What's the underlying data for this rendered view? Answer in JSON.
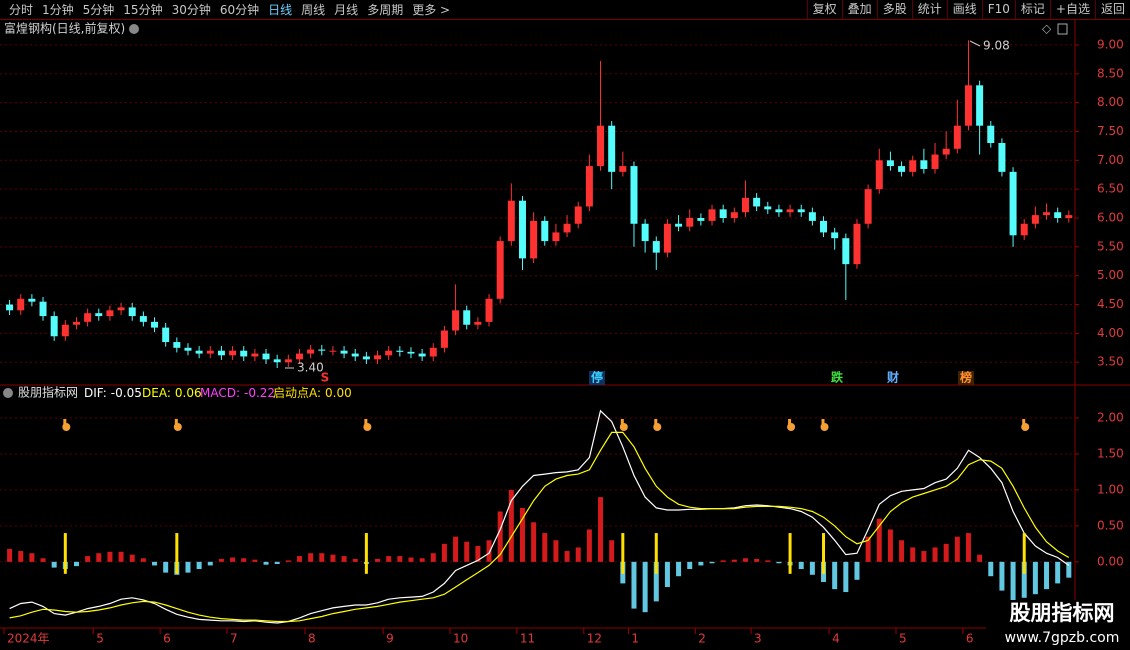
{
  "toolbar": {
    "left": [
      "分时",
      "1分钟",
      "5分钟",
      "15分钟",
      "30分钟",
      "60分钟",
      "日线",
      "周线",
      "月线",
      "多周期",
      "更多 >"
    ],
    "active": "日线",
    "right": [
      "复权",
      "叠加",
      "多股",
      "统计",
      "画线",
      "F10",
      "标记",
      "+自选",
      "返回"
    ]
  },
  "chart_data": [
    {
      "type": "candlestick",
      "title": "富煌钢构(日线,前复权)",
      "categories": [
        "2024年",
        null,
        null,
        null,
        null,
        null,
        null,
        null,
        "5",
        null,
        null,
        null,
        null,
        null,
        "6",
        null,
        null,
        null,
        null,
        null,
        "7",
        null,
        null,
        null,
        null,
        null,
        null,
        "8",
        null,
        null,
        null,
        null,
        null,
        null,
        "9",
        null,
        null,
        null,
        null,
        null,
        "10",
        null,
        null,
        null,
        null,
        null,
        "11",
        null,
        null,
        null,
        null,
        null,
        "12",
        null,
        null,
        null,
        "1",
        null,
        null,
        null,
        null,
        null,
        "2",
        null,
        null,
        null,
        null,
        "3",
        null,
        null,
        null,
        null,
        null,
        null,
        "4",
        null,
        null,
        null,
        null,
        null,
        "5",
        null,
        null,
        null,
        null,
        null,
        "6",
        null,
        null,
        null,
        null,
        null,
        null,
        null,
        null,
        null
      ],
      "open": [
        4.5,
        4.4,
        4.6,
        4.55,
        4.3,
        3.95,
        4.15,
        4.2,
        4.35,
        4.3,
        4.4,
        4.45,
        4.3,
        4.2,
        4.1,
        3.85,
        3.75,
        3.7,
        3.65,
        3.7,
        3.62,
        3.7,
        3.6,
        3.65,
        3.55,
        3.5,
        3.55,
        3.65,
        3.72,
        3.7,
        3.7,
        3.65,
        3.6,
        3.55,
        3.62,
        3.7,
        3.68,
        3.65,
        3.6,
        3.75,
        4.05,
        4.4,
        4.15,
        4.2,
        4.6,
        5.6,
        6.3,
        5.3,
        5.95,
        5.6,
        5.75,
        5.9,
        6.2,
        6.9,
        7.6,
        6.8,
        6.9,
        5.9,
        5.6,
        5.4,
        5.9,
        5.85,
        6.0,
        5.95,
        6.15,
        6.0,
        6.1,
        6.35,
        6.2,
        6.15,
        6.1,
        6.15,
        6.1,
        5.95,
        5.75,
        5.65,
        5.2,
        5.9,
        6.5,
        7.0,
        6.9,
        6.8,
        7.0,
        6.85,
        7.1,
        7.2,
        7.6,
        8.3,
        7.6,
        7.3,
        6.8,
        5.7,
        5.9,
        6.05,
        6.1,
        6.0
      ],
      "high": [
        4.58,
        4.68,
        4.68,
        4.63,
        4.38,
        4.23,
        4.28,
        4.43,
        4.43,
        4.48,
        4.53,
        4.53,
        4.38,
        4.28,
        4.18,
        3.93,
        3.83,
        3.78,
        3.78,
        3.78,
        3.78,
        3.78,
        3.73,
        3.73,
        3.63,
        3.63,
        3.73,
        3.8,
        3.8,
        3.78,
        3.78,
        3.73,
        3.68,
        3.7,
        3.78,
        3.78,
        3.76,
        3.73,
        3.83,
        4.13,
        4.85,
        4.48,
        4.28,
        4.68,
        5.68,
        6.6,
        6.38,
        6.1,
        6.03,
        5.9,
        6.05,
        6.28,
        7.1,
        8.72,
        7.68,
        7.15,
        6.98,
        5.98,
        5.68,
        5.98,
        6.05,
        6.15,
        6.08,
        6.23,
        6.23,
        6.18,
        6.65,
        6.43,
        6.28,
        6.23,
        6.23,
        6.23,
        6.18,
        6.03,
        5.83,
        5.73,
        5.98,
        6.58,
        7.2,
        7.15,
        6.98,
        7.08,
        7.2,
        7.3,
        7.5,
        8.05,
        9.08,
        8.38,
        7.68,
        7.38,
        6.88,
        5.98,
        6.2,
        6.25,
        6.18,
        6.13
      ],
      "low": [
        4.32,
        4.32,
        4.47,
        4.22,
        3.87,
        3.87,
        4.07,
        4.12,
        4.22,
        4.22,
        4.32,
        4.22,
        4.12,
        4.02,
        3.77,
        3.67,
        3.62,
        3.57,
        3.57,
        3.54,
        3.54,
        3.52,
        3.52,
        3.47,
        3.4,
        3.42,
        3.47,
        3.57,
        3.62,
        3.62,
        3.57,
        3.52,
        3.47,
        3.47,
        3.54,
        3.6,
        3.57,
        3.52,
        3.52,
        3.67,
        3.97,
        4.07,
        4.07,
        4.12,
        4.52,
        5.52,
        5.1,
        5.22,
        5.52,
        5.52,
        5.67,
        5.82,
        6.12,
        6.82,
        6.5,
        6.72,
        5.5,
        5.4,
        5.1,
        5.32,
        5.77,
        5.77,
        5.87,
        5.87,
        5.92,
        5.92,
        6.02,
        6.12,
        6.07,
        6.02,
        6.02,
        6.02,
        5.87,
        5.67,
        5.45,
        4.58,
        5.12,
        5.82,
        6.42,
        6.82,
        6.72,
        6.72,
        6.77,
        6.77,
        7.02,
        7.12,
        7.52,
        7.1,
        7.22,
        6.72,
        5.5,
        5.62,
        5.82,
        5.97,
        5.92,
        5.92
      ],
      "close": [
        4.4,
        4.6,
        4.55,
        4.3,
        3.95,
        4.15,
        4.2,
        4.35,
        4.3,
        4.4,
        4.45,
        4.3,
        4.2,
        4.1,
        3.85,
        3.75,
        3.7,
        3.65,
        3.7,
        3.62,
        3.7,
        3.6,
        3.65,
        3.55,
        3.5,
        3.55,
        3.65,
        3.72,
        3.7,
        3.7,
        3.65,
        3.6,
        3.55,
        3.62,
        3.7,
        3.68,
        3.65,
        3.6,
        3.75,
        4.05,
        4.4,
        4.15,
        4.2,
        4.6,
        5.6,
        6.3,
        5.3,
        5.95,
        5.6,
        5.75,
        5.9,
        6.2,
        6.9,
        7.6,
        6.8,
        6.9,
        5.9,
        5.6,
        5.4,
        5.9,
        5.85,
        6.0,
        5.95,
        6.15,
        6.0,
        6.1,
        6.35,
        6.2,
        6.15,
        6.1,
        6.15,
        6.1,
        5.95,
        5.75,
        5.65,
        5.2,
        5.9,
        6.5,
        7.0,
        6.9,
        6.8,
        7.0,
        6.85,
        7.1,
        7.2,
        7.6,
        8.3,
        7.6,
        7.3,
        6.8,
        5.7,
        5.9,
        6.05,
        6.1,
        6.0,
        6.05
      ],
      "up_color": "#ff3232",
      "down_color": "#54fcfc",
      "ylim": [
        3.14,
        9.12
      ],
      "yticks": [
        {
          "value": 3.5,
          "label": "3.50"
        },
        {
          "value": 4,
          "label": "4.00"
        },
        {
          "value": 4.5,
          "label": "4.50"
        },
        {
          "value": 5,
          "label": "5.00"
        },
        {
          "value": 5.5,
          "label": "5.50"
        },
        {
          "value": 6,
          "label": "6.00"
        },
        {
          "value": 6.5,
          "label": "6.50"
        },
        {
          "value": 7,
          "label": "7.00"
        },
        {
          "value": 7.5,
          "label": "7.50"
        },
        {
          "value": 8,
          "label": "8.00"
        },
        {
          "value": 8.5,
          "label": "8.50"
        },
        {
          "value": 9,
          "label": "9.00"
        }
      ],
      "grid": true,
      "annotations": [
        "9.08",
        "3.40"
      ],
      "events": [
        "S",
        "停",
        "跌",
        "财",
        "榜"
      ]
    },
    {
      "type": "macd",
      "title": "股朋指标网",
      "series": [
        {
          "name": "DIF:",
          "last_label": "-0.05",
          "color": "#ffffff",
          "values": [
            -0.65,
            -0.58,
            -0.56,
            -0.62,
            -0.72,
            -0.74,
            -0.7,
            -0.65,
            -0.62,
            -0.58,
            -0.52,
            -0.5,
            -0.53,
            -0.58,
            -0.66,
            -0.73,
            -0.77,
            -0.8,
            -0.81,
            -0.82,
            -0.82,
            -0.83,
            -0.82,
            -0.84,
            -0.85,
            -0.83,
            -0.78,
            -0.72,
            -0.68,
            -0.64,
            -0.62,
            -0.6,
            -0.6,
            -0.57,
            -0.52,
            -0.5,
            -0.49,
            -0.48,
            -0.42,
            -0.3,
            -0.12,
            -0.05,
            0.02,
            0.12,
            0.45,
            0.85,
            1.05,
            1.2,
            1.22,
            1.24,
            1.25,
            1.28,
            1.45,
            2.1,
            1.95,
            1.6,
            1.2,
            0.9,
            0.75,
            0.72,
            0.72,
            0.73,
            0.73,
            0.74,
            0.74,
            0.75,
            0.78,
            0.79,
            0.78,
            0.76,
            0.74,
            0.7,
            0.62,
            0.48,
            0.3,
            0.1,
            0.12,
            0.45,
            0.8,
            0.92,
            0.98,
            1.0,
            1.02,
            1.1,
            1.15,
            1.3,
            1.55,
            1.45,
            1.3,
            1.1,
            0.7,
            0.4,
            0.22,
            0.12,
            0.06,
            -0.05
          ]
        },
        {
          "name": "DEA:",
          "last_label": "0.06",
          "color": "#ffff00",
          "values": [
            -0.78,
            -0.75,
            -0.7,
            -0.66,
            -0.67,
            -0.69,
            -0.7,
            -0.69,
            -0.67,
            -0.64,
            -0.6,
            -0.57,
            -0.55,
            -0.56,
            -0.6,
            -0.65,
            -0.7,
            -0.74,
            -0.77,
            -0.79,
            -0.8,
            -0.81,
            -0.81,
            -0.82,
            -0.83,
            -0.83,
            -0.82,
            -0.79,
            -0.76,
            -0.72,
            -0.69,
            -0.66,
            -0.64,
            -0.62,
            -0.59,
            -0.56,
            -0.54,
            -0.52,
            -0.5,
            -0.45,
            -0.35,
            -0.25,
            -0.15,
            -0.05,
            0.1,
            0.35,
            0.6,
            0.85,
            1.05,
            1.15,
            1.2,
            1.22,
            1.28,
            1.55,
            1.8,
            1.8,
            1.6,
            1.3,
            1.05,
            0.9,
            0.8,
            0.76,
            0.74,
            0.74,
            0.74,
            0.74,
            0.76,
            0.77,
            0.77,
            0.77,
            0.76,
            0.74,
            0.7,
            0.62,
            0.5,
            0.35,
            0.25,
            0.3,
            0.5,
            0.7,
            0.82,
            0.9,
            0.95,
            1.0,
            1.05,
            1.15,
            1.35,
            1.42,
            1.4,
            1.3,
            1.05,
            0.75,
            0.48,
            0.28,
            0.15,
            0.06
          ]
        },
        {
          "name": "MACD:",
          "last_label": "-0.22",
          "color": "#ff40ff",
          "up_color": "#d41a1a",
          "down_color": "#62c8e2",
          "values": [
            0.18,
            0.15,
            0.12,
            0.05,
            -0.08,
            -0.1,
            -0.06,
            0.08,
            0.12,
            0.14,
            0.14,
            0.1,
            0.05,
            -0.05,
            -0.15,
            -0.18,
            -0.15,
            -0.1,
            -0.05,
            0.04,
            0.06,
            0.05,
            0.03,
            -0.04,
            -0.03,
            0.02,
            0.08,
            0.12,
            0.12,
            0.1,
            0.08,
            0.04,
            -0.03,
            0.04,
            0.08,
            0.08,
            0.06,
            0.05,
            0.12,
            0.25,
            0.35,
            0.28,
            0.22,
            0.3,
            0.7,
            1.0,
            0.75,
            0.55,
            0.4,
            0.3,
            0.15,
            0.2,
            0.45,
            0.9,
            0.3,
            -0.3,
            -0.65,
            -0.7,
            -0.55,
            -0.35,
            -0.2,
            -0.1,
            -0.05,
            -0.02,
            0.02,
            0.03,
            0.05,
            0.04,
            0.02,
            -0.02,
            -0.05,
            -0.1,
            -0.18,
            -0.28,
            -0.38,
            -0.42,
            -0.25,
            0.35,
            0.6,
            0.45,
            0.3,
            0.2,
            0.15,
            0.2,
            0.25,
            0.35,
            0.4,
            0.1,
            -0.2,
            -0.4,
            -0.55,
            -0.5,
            -0.45,
            -0.38,
            -0.3,
            -0.22
          ]
        },
        {
          "name": "启动点A:",
          "last_label": "0.00",
          "color": "#ffe000",
          "values": [
            0,
            0,
            0,
            0,
            0,
            0.4,
            0,
            0,
            0,
            0,
            0,
            0,
            0,
            0,
            0,
            0.4,
            0,
            0,
            0,
            0,
            0,
            0,
            0,
            0,
            0,
            0,
            0,
            0,
            0,
            0,
            0,
            0,
            0.4,
            0,
            0,
            0,
            0,
            0,
            0,
            0,
            0,
            0,
            0,
            0,
            0,
            0,
            0,
            0,
            0,
            0,
            0,
            0,
            0,
            0,
            0,
            0.4,
            0,
            0,
            0.4,
            0,
            0,
            0,
            0,
            0,
            0,
            0,
            0,
            0,
            0,
            0,
            0.4,
            0,
            0,
            0.4,
            0,
            0,
            0,
            0,
            0,
            0,
            0,
            0,
            0,
            0,
            0,
            0,
            0,
            0,
            0,
            0,
            0,
            0.4,
            0,
            0,
            0,
            0
          ]
        }
      ],
      "ylim": [
        -0.92,
        2.25
      ],
      "yticks": [
        {
          "value": 0,
          "label": "0.00"
        },
        {
          "value": 0.5,
          "label": "0.50"
        },
        {
          "value": 1,
          "label": "1.00"
        },
        {
          "value": 1.5,
          "label": "1.50"
        },
        {
          "value": 2,
          "label": "2.00"
        }
      ],
      "grid": true
    }
  ],
  "watermark": {
    "title": "股朋指标网",
    "url": "www.7gpzb.com"
  }
}
